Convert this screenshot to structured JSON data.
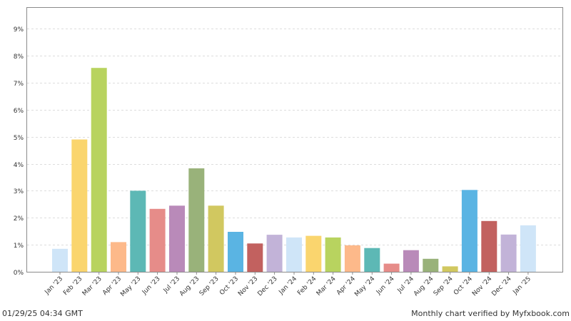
{
  "chart_data": {
    "type": "bar",
    "categories": [
      "Jan '23",
      "Feb '23",
      "Mar '23",
      "Apr '23",
      "May '23",
      "Jun '23",
      "Jul '23",
      "Aug '23",
      "Sep '23",
      "Oct '23",
      "Nov '23",
      "Dec '23",
      "Jan '24",
      "Feb '24",
      "Mar '24",
      "Apr '24",
      "May '24",
      "Jun '24",
      "Jul '24",
      "Aug '24",
      "Sep '24",
      "Oct '24",
      "Nov '24",
      "Dec '24",
      "Jan '25"
    ],
    "values": [
      0.85,
      4.9,
      7.55,
      1.1,
      3.0,
      2.33,
      2.45,
      3.83,
      2.45,
      1.48,
      1.05,
      1.37,
      1.27,
      1.33,
      1.27,
      0.98,
      0.88,
      0.3,
      0.8,
      0.48,
      0.2,
      3.03,
      1.88,
      1.38,
      1.72
    ],
    "colors": [
      "#cfe5f8",
      "#fad56e",
      "#b8d35f",
      "#fdb98a",
      "#5db8b5",
      "#e68c89",
      "#b98ab9",
      "#99b27a",
      "#d1c860",
      "#5ab4e3",
      "#c2615f",
      "#c2b3d8",
      "#cfe5f8",
      "#fad56e",
      "#b8d35f",
      "#fdb98a",
      "#5db8b5",
      "#e68c89",
      "#b98ab9",
      "#99b27a",
      "#d1c860",
      "#5ab4e3",
      "#c2615f",
      "#c2b3d8",
      "#cfe5f8"
    ],
    "yticks": [
      "0%",
      "1%",
      "2%",
      "3%",
      "4%",
      "5%",
      "6%",
      "7%",
      "8%",
      "9%"
    ],
    "ylim": [
      0,
      9.8
    ],
    "grid": true
  },
  "footer": {
    "timestamp": "01/29/25 04:34 GMT",
    "verified": "Monthly chart verified by Myfxbook.com"
  }
}
